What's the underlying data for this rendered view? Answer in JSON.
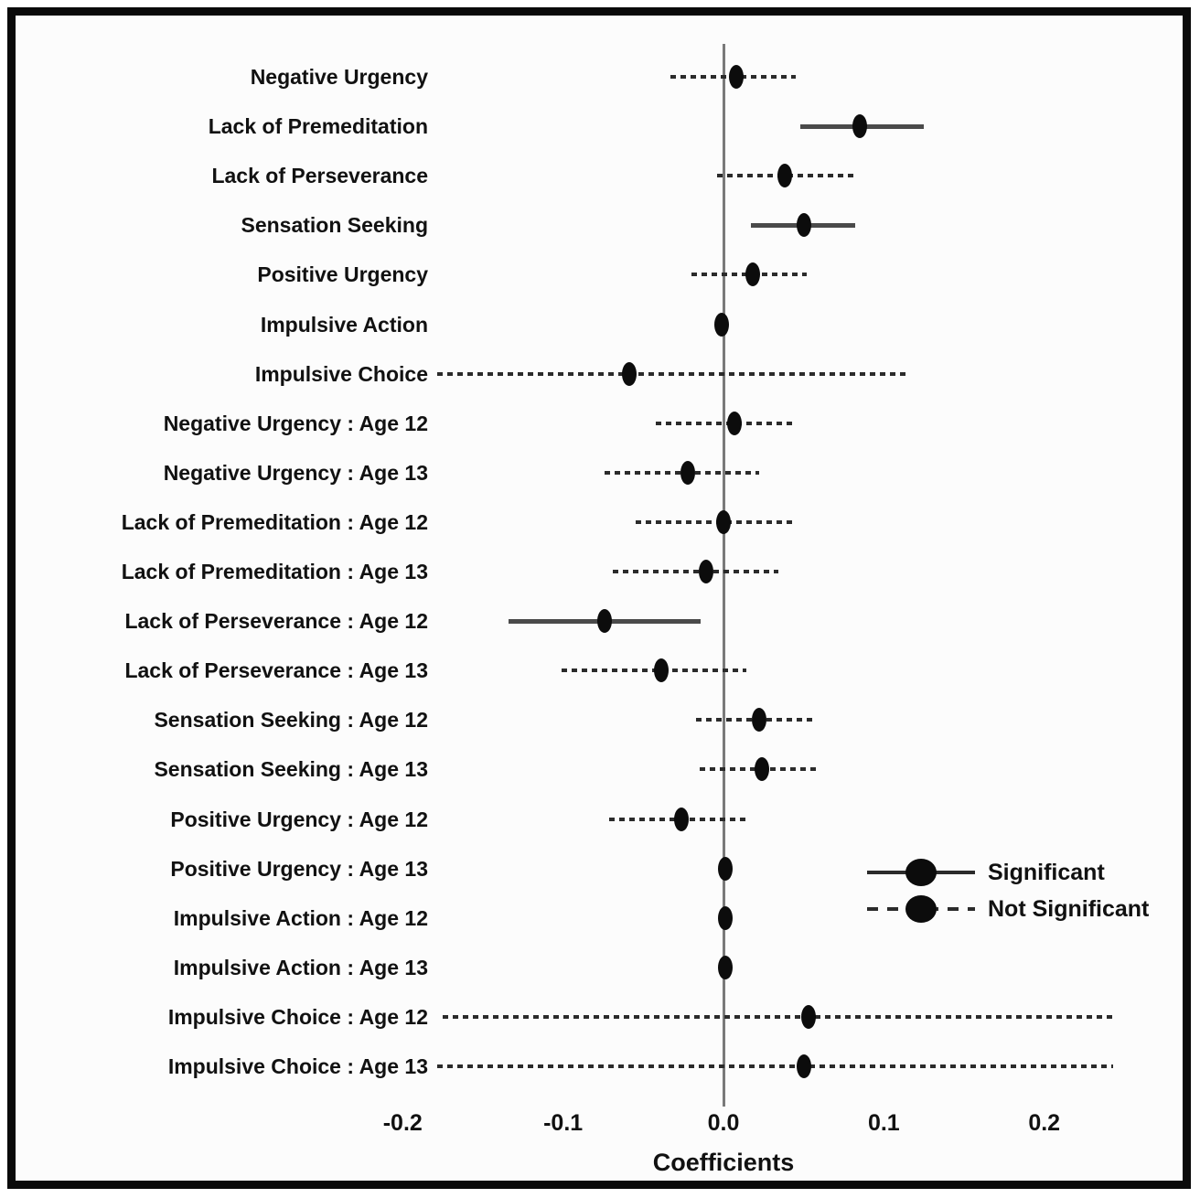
{
  "figure": {
    "xlabel": "Coefficients",
    "x_ticks": [
      "-0.2",
      "-0.1",
      "0.0",
      "0.1",
      "0.2"
    ],
    "x_tick_values": [
      -0.2,
      -0.1,
      0.0,
      0.1,
      0.2
    ],
    "legend": [
      {
        "label": "Significant",
        "style": "solid"
      },
      {
        "label": "Not Significant",
        "style": "dashed"
      }
    ],
    "colors": {
      "marker": "#0c0c0c",
      "solid_ci": "#4a4a4a",
      "dashed_ci": "#2b2b2b",
      "zero_line": "#7a7a7a",
      "frame": "#0a0a0a",
      "text": "#111111",
      "bg": "#fcfcfc"
    }
  },
  "chart_data": {
    "type": "scatter",
    "subtype": "forest-plot",
    "orientation": "horizontal",
    "title": "",
    "xlabel": "Coefficients",
    "ylabel": "",
    "xlim": [
      -0.28,
      0.28
    ],
    "zero_reference_line": 0.0,
    "grid": false,
    "legend_position": "inside-right",
    "rows": [
      {
        "label": "Negative Urgency",
        "estimate": 0.008,
        "ci_low": -0.033,
        "ci_high": 0.045,
        "significant": false
      },
      {
        "label": "Lack of Premeditation",
        "estimate": 0.085,
        "ci_low": 0.048,
        "ci_high": 0.125,
        "significant": true
      },
      {
        "label": "Lack of Perseverance",
        "estimate": 0.038,
        "ci_low": -0.004,
        "ci_high": 0.081,
        "significant": false
      },
      {
        "label": "Sensation Seeking",
        "estimate": 0.05,
        "ci_low": 0.017,
        "ci_high": 0.082,
        "significant": true
      },
      {
        "label": "Positive Urgency",
        "estimate": 0.018,
        "ci_low": -0.02,
        "ci_high": 0.052,
        "significant": false
      },
      {
        "label": "Impulsive Action",
        "estimate": -0.001,
        "ci_low": null,
        "ci_high": null,
        "significant": null
      },
      {
        "label": "Impulsive Choice",
        "estimate": -0.059,
        "ci_low": -0.242,
        "ci_high": 0.115,
        "significant": false
      },
      {
        "label": "Negative Urgency : Age 12",
        "estimate": 0.007,
        "ci_low": -0.042,
        "ci_high": 0.044,
        "significant": false
      },
      {
        "label": "Negative Urgency : Age 13",
        "estimate": -0.022,
        "ci_low": -0.074,
        "ci_high": 0.022,
        "significant": false
      },
      {
        "label": "Lack of Premeditation : Age 12",
        "estimate": 0.0,
        "ci_low": -0.055,
        "ci_high": 0.044,
        "significant": false
      },
      {
        "label": "Lack of Premeditation : Age 13",
        "estimate": -0.011,
        "ci_low": -0.069,
        "ci_high": 0.034,
        "significant": false
      },
      {
        "label": "Lack of Perseverance : Age 12",
        "estimate": -0.074,
        "ci_low": -0.134,
        "ci_high": -0.014,
        "significant": true
      },
      {
        "label": "Lack of Perseverance : Age 13",
        "estimate": -0.039,
        "ci_low": -0.101,
        "ci_high": 0.014,
        "significant": false
      },
      {
        "label": "Sensation Seeking : Age 12",
        "estimate": 0.022,
        "ci_low": -0.017,
        "ci_high": 0.058,
        "significant": false
      },
      {
        "label": "Sensation Seeking : Age 13",
        "estimate": 0.024,
        "ci_low": -0.015,
        "ci_high": 0.06,
        "significant": false
      },
      {
        "label": "Positive Urgency : Age 12",
        "estimate": -0.026,
        "ci_low": -0.071,
        "ci_high": 0.014,
        "significant": false
      },
      {
        "label": "Positive Urgency : Age 13",
        "estimate": 0.001,
        "ci_low": null,
        "ci_high": null,
        "significant": null
      },
      {
        "label": "Impulsive Action : Age 12",
        "estimate": 0.001,
        "ci_low": null,
        "ci_high": null,
        "significant": null
      },
      {
        "label": "Impulsive Action : Age 13",
        "estimate": 0.001,
        "ci_low": null,
        "ci_high": null,
        "significant": null
      },
      {
        "label": "Impulsive Choice : Age 12",
        "estimate": 0.053,
        "ci_low": -0.175,
        "ci_high": 0.243,
        "significant": false
      },
      {
        "label": "Impulsive Choice : Age 13",
        "estimate": 0.05,
        "ci_low": -0.185,
        "ci_high": 0.243,
        "significant": false
      }
    ]
  }
}
